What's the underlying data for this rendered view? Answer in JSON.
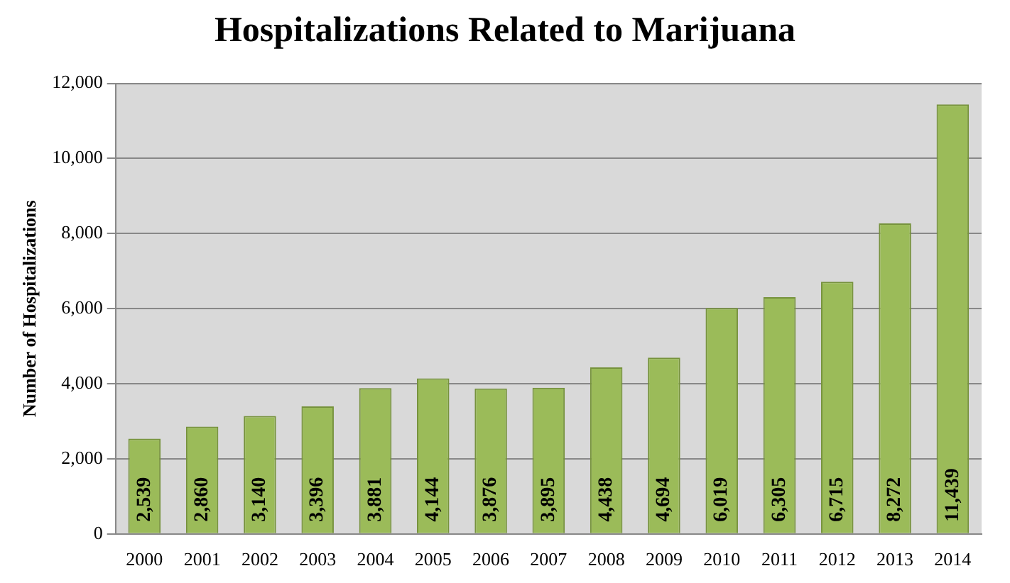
{
  "chart_data": {
    "type": "bar",
    "title": "Hospitalizations Related to Marijuana",
    "ylabel": "Number of Hospitalizations",
    "categories": [
      "2000",
      "2001",
      "2002",
      "2003",
      "2004",
      "2005",
      "2006",
      "2007",
      "2008",
      "2009",
      "2010",
      "2011",
      "2012",
      "2013",
      "2014"
    ],
    "values": [
      2539,
      2860,
      3140,
      3396,
      3881,
      4144,
      3876,
      3895,
      4438,
      4694,
      6019,
      6305,
      6715,
      8272,
      11439
    ],
    "color": "#9bbb59",
    "ylim": [
      0,
      12000
    ],
    "yticks": [
      0,
      {
        "value": 2000,
        "label": "2,000"
      },
      {
        "value": 4000,
        "label": "4,000"
      },
      {
        "value": 6000,
        "label": "6,000"
      },
      {
        "value": 8000,
        "label": "8,000"
      },
      {
        "value": 10000,
        "label": "10,000"
      },
      {
        "value": 12000,
        "label": "12,000"
      }
    ],
    "value_labels": [
      "2,539",
      "2,860",
      "3,140",
      "3,396",
      "3,881",
      "4,144",
      "3,876",
      "3,895",
      "4,438",
      "4,694",
      "6,019",
      "6,305",
      "6,715",
      "8,272",
      "11,439"
    ],
    "grid": "y",
    "legend": false
  }
}
